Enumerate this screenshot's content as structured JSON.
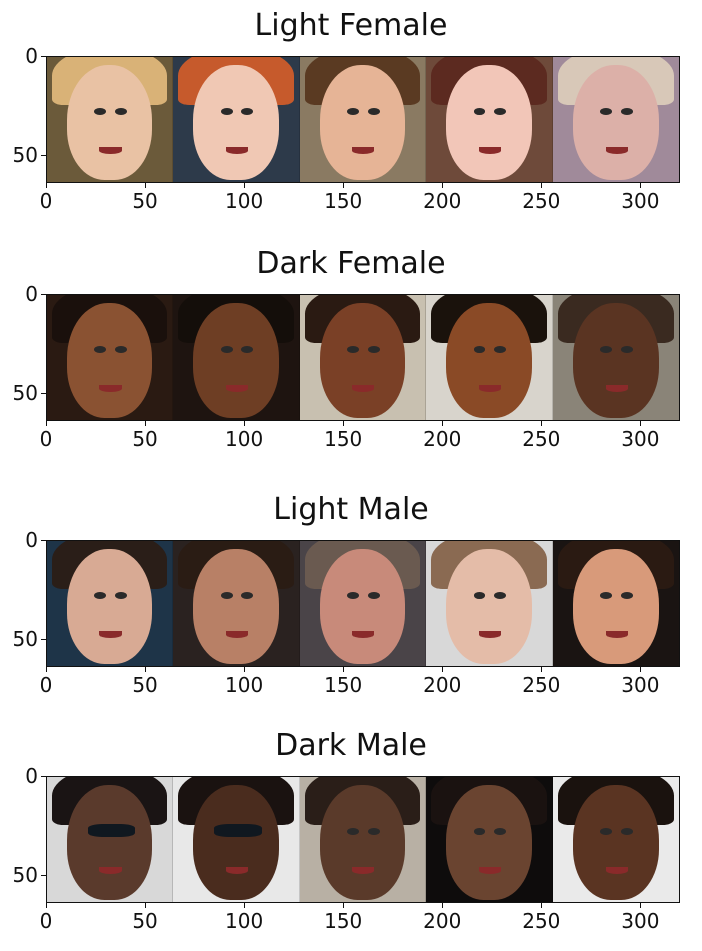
{
  "chart_data": [
    {
      "type": "image-grid",
      "title": "Light Female",
      "xlim": [
        0,
        320
      ],
      "ylim": [
        64,
        0
      ],
      "xticks": [
        "0",
        "50",
        "100",
        "150",
        "200",
        "250",
        "300"
      ],
      "yticks": [
        "0",
        "50"
      ],
      "image_count": 5,
      "image_width": 64,
      "image_height": 64,
      "images": [
        {
          "bg": "#6b5a3a",
          "skin": "#e9c2a4",
          "hair": "#d9b277"
        },
        {
          "bg": "#2d3a4a",
          "skin": "#f0c8b4",
          "hair": "#c65a2c"
        },
        {
          "bg": "#8a7a62",
          "skin": "#e6b496",
          "hair": "#5a3a22"
        },
        {
          "bg": "#6e4a3a",
          "skin": "#f2c6b8",
          "hair": "#5c2a20"
        },
        {
          "bg": "#a08a9a",
          "skin": "#dcb0a8",
          "hair": "#d8c8b8"
        }
      ]
    },
    {
      "type": "image-grid",
      "title": "Dark Female",
      "xlim": [
        0,
        320
      ],
      "ylim": [
        64,
        0
      ],
      "xticks": [
        "0",
        "50",
        "100",
        "150",
        "200",
        "250",
        "300"
      ],
      "yticks": [
        "0",
        "50"
      ],
      "image_count": 5,
      "image_width": 64,
      "image_height": 64,
      "images": [
        {
          "bg": "#2a1a12",
          "skin": "#8a5232",
          "hair": "#1a100c"
        },
        {
          "bg": "#1e1410",
          "skin": "#6e3e24",
          "hair": "#140e0a"
        },
        {
          "bg": "#c8c0b0",
          "skin": "#7a4026",
          "hair": "#2a1a12"
        },
        {
          "bg": "#d8d4cc",
          "skin": "#8a4a26",
          "hair": "#1a120c"
        },
        {
          "bg": "#8a8478",
          "skin": "#5a3422",
          "hair": "#3a2a20"
        }
      ]
    },
    {
      "type": "image-grid",
      "title": "Light Male",
      "xlim": [
        0,
        320
      ],
      "ylim": [
        64,
        0
      ],
      "xticks": [
        "0",
        "50",
        "100",
        "150",
        "200",
        "250",
        "300"
      ],
      "yticks": [
        "0",
        "50"
      ],
      "image_count": 5,
      "image_width": 64,
      "image_height": 64,
      "images": [
        {
          "bg": "#1e3448",
          "skin": "#d8aa94",
          "hair": "#2a1e18"
        },
        {
          "bg": "#2a2220",
          "skin": "#b88066",
          "hair": "#2a1c14"
        },
        {
          "bg": "#4a4448",
          "skin": "#c88a7a",
          "hair": "#6a5a50"
        },
        {
          "bg": "#d8d8d8",
          "skin": "#e4bca8",
          "hair": "#8a6a52"
        },
        {
          "bg": "#1a1412",
          "skin": "#d89a7a",
          "hair": "#2a1a12"
        }
      ]
    },
    {
      "type": "image-grid",
      "title": "Dark Male",
      "xlim": [
        0,
        320
      ],
      "ylim": [
        64,
        0
      ],
      "xticks": [
        "0",
        "50",
        "100",
        "150",
        "200",
        "250",
        "300"
      ],
      "yticks": [
        "0",
        "50"
      ],
      "image_count": 5,
      "image_width": 64,
      "image_height": 64,
      "images": [
        {
          "bg": "#d8d8d8",
          "skin": "#5a3a2c",
          "hair": "#1a1414",
          "glasses": true
        },
        {
          "bg": "#e8e8e8",
          "skin": "#4a2c1e",
          "hair": "#1a1210",
          "glasses": true
        },
        {
          "bg": "#b8b0a4",
          "skin": "#5a3a2a",
          "hair": "#2a1e18"
        },
        {
          "bg": "#0e0c0c",
          "skin": "#6a4430",
          "hair": "#1a1210"
        },
        {
          "bg": "#eaeaea",
          "skin": "#5a3422",
          "hair": "#1a120e"
        }
      ]
    }
  ]
}
